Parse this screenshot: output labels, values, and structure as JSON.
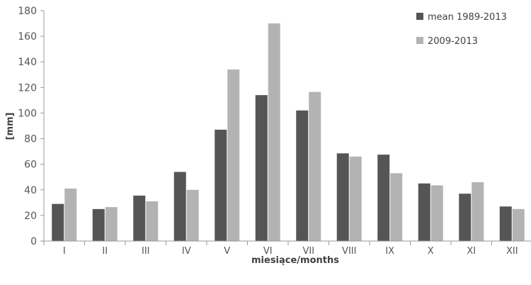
{
  "chart_data": {
    "type": "bar",
    "categories": [
      "I",
      "II",
      "III",
      "IV",
      "V",
      "VI",
      "VII",
      "VIII",
      "IX",
      "X",
      "XI",
      "XII"
    ],
    "series": [
      {
        "name": "mean 1989-2013",
        "color": "#555555",
        "values": [
          29,
          25,
          35.5,
          54,
          87,
          114,
          102,
          68.5,
          67.5,
          45,
          37,
          27
        ]
      },
      {
        "name": "2009-2013",
        "color": "#b3b3b3",
        "values": [
          41,
          26.5,
          31,
          40,
          134,
          170,
          116.5,
          66,
          53,
          43.5,
          46,
          25
        ]
      }
    ],
    "title": "",
    "xlabel": "miesiące/months",
    "ylabel": "[mm]",
    "ylim": [
      0,
      180
    ],
    "yticks": [
      0,
      20,
      40,
      60,
      80,
      100,
      120,
      140,
      160,
      180
    ],
    "grid": false,
    "legend": "top-right"
  }
}
